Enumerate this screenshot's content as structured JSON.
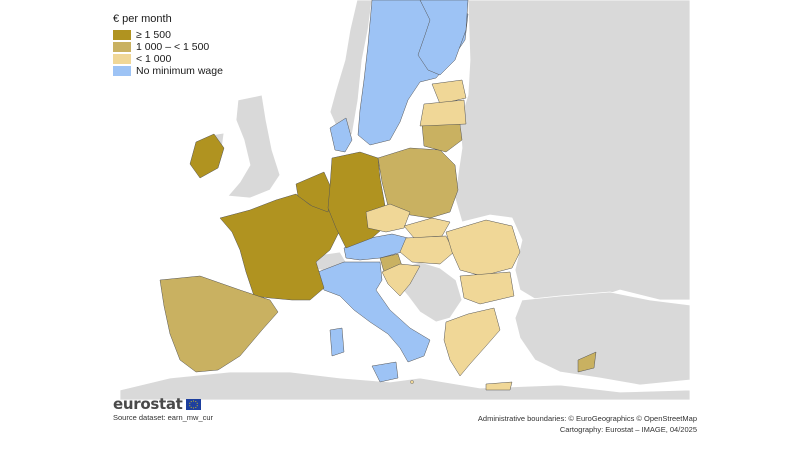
{
  "legend": {
    "title": "€ per month",
    "items": [
      {
        "label": "≥ 1 500",
        "color": "#b09320"
      },
      {
        "label": "1 000 – < 1 500",
        "color": "#c9b161"
      },
      {
        "label": "< 1 000",
        "color": "#f0d797"
      },
      {
        "label": "No minimum wage",
        "color": "#9dc3f5"
      }
    ]
  },
  "colors": {
    "other_land": "#d9d9d9",
    "sea": "#ffffff",
    "borders": "#555555"
  },
  "logo": {
    "text": "eurostat"
  },
  "source": "Source dataset: earn_mw_cur",
  "credits": {
    "line1": "Administrative boundaries: © EuroGeographics © OpenStreetMap",
    "line2": "Cartography: Eurostat – IMAGE, 04/2025"
  }
}
